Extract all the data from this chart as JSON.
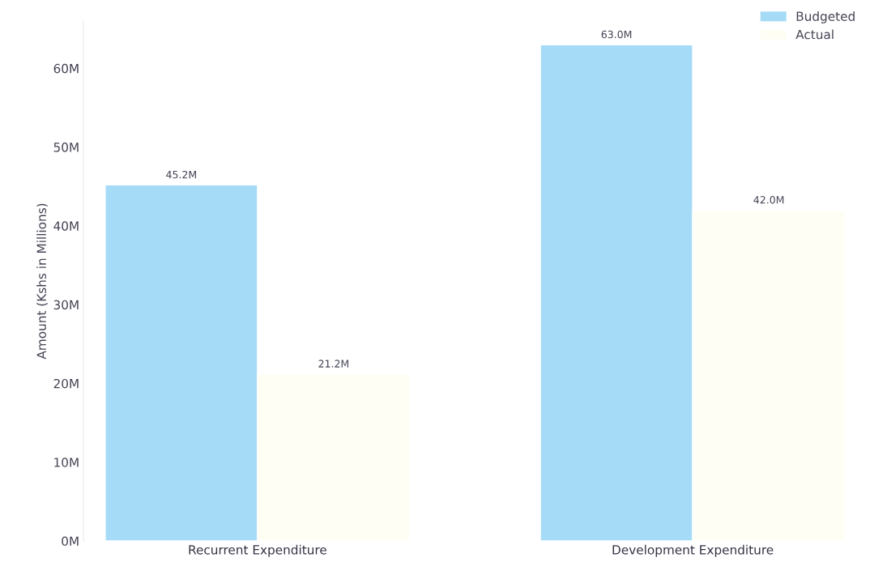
{
  "chart_data": {
    "type": "bar",
    "ylabel": "Amount (Kshs in Millions)",
    "categories": [
      "Recurrent Expenditure",
      "Development Expenditure"
    ],
    "series": [
      {
        "name": "Budgeted",
        "color": "#a6dbf7",
        "values": [
          45.2,
          63.0
        ],
        "value_labels": [
          "45.2M",
          "63.0M"
        ]
      },
      {
        "name": "Actual",
        "color": "#fffef5",
        "values": [
          21.2,
          42.0
        ],
        "value_labels": [
          "21.2M",
          "42.0M"
        ]
      }
    ],
    "yticks": [
      {
        "value": 0,
        "label": "0M"
      },
      {
        "value": 10,
        "label": "10M"
      },
      {
        "value": 20,
        "label": "20M"
      },
      {
        "value": 30,
        "label": "30M"
      },
      {
        "value": 40,
        "label": "40M"
      },
      {
        "value": 50,
        "label": "50M"
      },
      {
        "value": 60,
        "label": "60M"
      }
    ],
    "ylim": [
      0,
      66
    ],
    "grid": false,
    "legend": "top right"
  }
}
